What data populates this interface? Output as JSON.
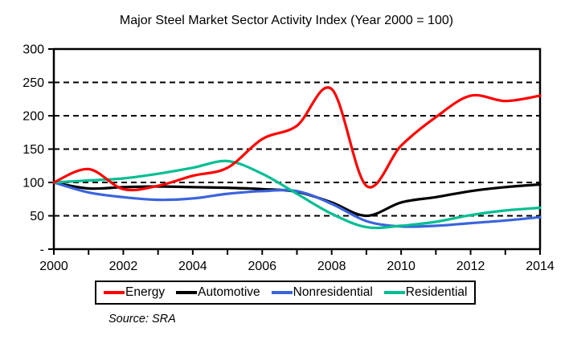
{
  "title": "Major Steel Market Sector Activity Index (Year 2000 = 100)",
  "source_note": "Source: SRA",
  "chart_data": {
    "type": "line",
    "title": "Major Steel Market Sector Activity Index (Year 2000 = 100)",
    "xlabel": "",
    "ylabel": "",
    "x": [
      2000,
      2001,
      2002,
      2003,
      2004,
      2005,
      2006,
      2007,
      2008,
      2009,
      2010,
      2011,
      2012,
      2013,
      2014
    ],
    "series": [
      {
        "name": "Energy",
        "color": "#FF0000",
        "values": [
          100,
          120,
          90,
          95,
          110,
          122,
          165,
          185,
          240,
          95,
          155,
          198,
          230,
          222,
          230
        ]
      },
      {
        "name": "Automotive",
        "color": "#000000",
        "values": [
          100,
          91,
          93,
          94,
          93,
          92,
          90,
          86,
          70,
          50,
          70,
          78,
          87,
          93,
          97
        ]
      },
      {
        "name": "Nonresidential",
        "color": "#3B64DC",
        "values": [
          100,
          85,
          78,
          74,
          76,
          83,
          87,
          87,
          68,
          42,
          34,
          35,
          39,
          43,
          48
        ]
      },
      {
        "name": "Residential",
        "color": "#00BE92",
        "values": [
          100,
          103,
          106,
          113,
          122,
          132,
          113,
          83,
          53,
          33,
          35,
          41,
          51,
          58,
          62
        ]
      }
    ],
    "xlim": [
      2000,
      2014
    ],
    "ylim": [
      0,
      300
    ],
    "ytick_values": [
      300,
      250,
      200,
      150,
      100,
      50,
      0
    ],
    "ytick_labels": [
      "300",
      "250",
      "200",
      "150",
      "100",
      "50",
      "-"
    ],
    "xtick_minor_step": 1,
    "xtick_labels": [
      "2000",
      "2002",
      "2004",
      "2006",
      "2008",
      "2010",
      "2012",
      "2014"
    ],
    "xtick_label_values": [
      2000,
      2002,
      2004,
      2006,
      2008,
      2010,
      2012,
      2014
    ],
    "grid": "horizontal-dashed",
    "plot_border": "solid-black-box",
    "legend_position": "bottom"
  }
}
